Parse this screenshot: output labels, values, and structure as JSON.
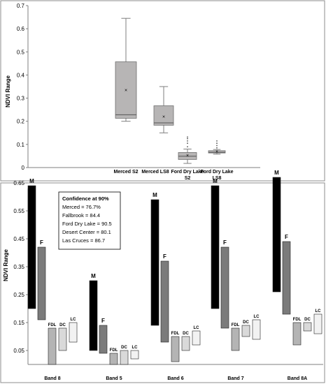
{
  "chart_data": [
    {
      "type": "box",
      "title": "",
      "xlabel": "",
      "ylabel": "NDVI Range",
      "ylim": [
        0,
        0.7
      ],
      "yticks": [
        "0",
        "0.1",
        "0.2",
        "0.3",
        "0.4",
        "0.5",
        "0.6",
        "0.7"
      ],
      "categories": [
        "Merced S2",
        "Merced LS8",
        "Ford Dry Lake S2",
        "Ford Dry Lake LS8"
      ],
      "boxes": [
        {
          "whisker_low": 0.2,
          "q1": 0.213,
          "median": 0.228,
          "q3": 0.457,
          "whisker_high": 0.645,
          "mean": 0.333,
          "outliers": [],
          "color": "#b7b5b5"
        },
        {
          "whisker_low": 0.15,
          "q1": 0.183,
          "median": 0.193,
          "q3": 0.267,
          "whisker_high": 0.35,
          "mean": 0.218,
          "outliers": [],
          "color": "#b7b5b5"
        },
        {
          "whisker_low": 0.018,
          "q1": 0.035,
          "median": 0.049,
          "q3": 0.065,
          "whisker_high": 0.08,
          "mean": 0.052,
          "outliers": [
            0.09,
            0.105,
            0.115,
            0.125,
            0.132
          ],
          "color": "#b7b5b5"
        },
        {
          "whisker_low": 0.058,
          "q1": 0.063,
          "median": 0.066,
          "q3": 0.073,
          "whisker_high": 0.078,
          "mean": 0.068,
          "outliers": [
            0.085,
            0.095,
            0.105,
            0.115
          ],
          "color": "#b7b5b5"
        }
      ]
    },
    {
      "type": "floating-bar",
      "title": "",
      "xlabel": "",
      "ylabel": "NDVI Range",
      "ylim": [
        0,
        0.7
      ],
      "yticks": [
        "0.05",
        "0.15",
        "0.25",
        "0.35",
        "0.45",
        "0.55",
        "0.65"
      ],
      "categories": [
        "Band 8",
        "Band 5",
        "Band 6",
        "Band 7",
        "Band 8A"
      ],
      "series": [
        {
          "name": "M",
          "color": "#000000",
          "ranges": [
            [
              0.2,
              0.64
            ],
            [
              0.05,
              0.3
            ],
            [
              0.14,
              0.59
            ],
            [
              0.2,
              0.64
            ],
            [
              0.26,
              0.67
            ]
          ]
        },
        {
          "name": "F",
          "color": "#7f7f7f",
          "ranges": [
            [
              0.16,
              0.42
            ],
            [
              0.04,
              0.14
            ],
            [
              0.08,
              0.37
            ],
            [
              0.13,
              0.42
            ],
            [
              0.18,
              0.44
            ]
          ]
        },
        {
          "name": "FDL",
          "color": "#b4b4b4",
          "ranges": [
            [
              0.0,
              0.13
            ],
            [
              0.0,
              0.04
            ],
            [
              0.01,
              0.1
            ],
            [
              0.05,
              0.13
            ],
            [
              0.07,
              0.15
            ]
          ]
        },
        {
          "name": "DC",
          "color": "#d9d9d9",
          "ranges": [
            [
              0.05,
              0.13
            ],
            [
              0.0,
              0.05
            ],
            [
              0.05,
              0.1
            ],
            [
              0.1,
              0.14
            ],
            [
              0.12,
              0.15
            ]
          ]
        },
        {
          "name": "LC",
          "color": "#f2f2f2",
          "ranges": [
            [
              0.08,
              0.15
            ],
            [
              0.02,
              0.05
            ],
            [
              0.07,
              0.12
            ],
            [
              0.09,
              0.16
            ],
            [
              0.11,
              0.18
            ]
          ]
        }
      ],
      "legend_box": {
        "title": "Confidence at 90%",
        "entries": [
          "Merced = 76.7%",
          "Fallbrook = 84.4",
          "Ford Dry Lake = 90.5",
          "Desert Center = 80.1",
          "Las Cruces = 86.7"
        ],
        "placement": "top-left"
      }
    }
  ]
}
